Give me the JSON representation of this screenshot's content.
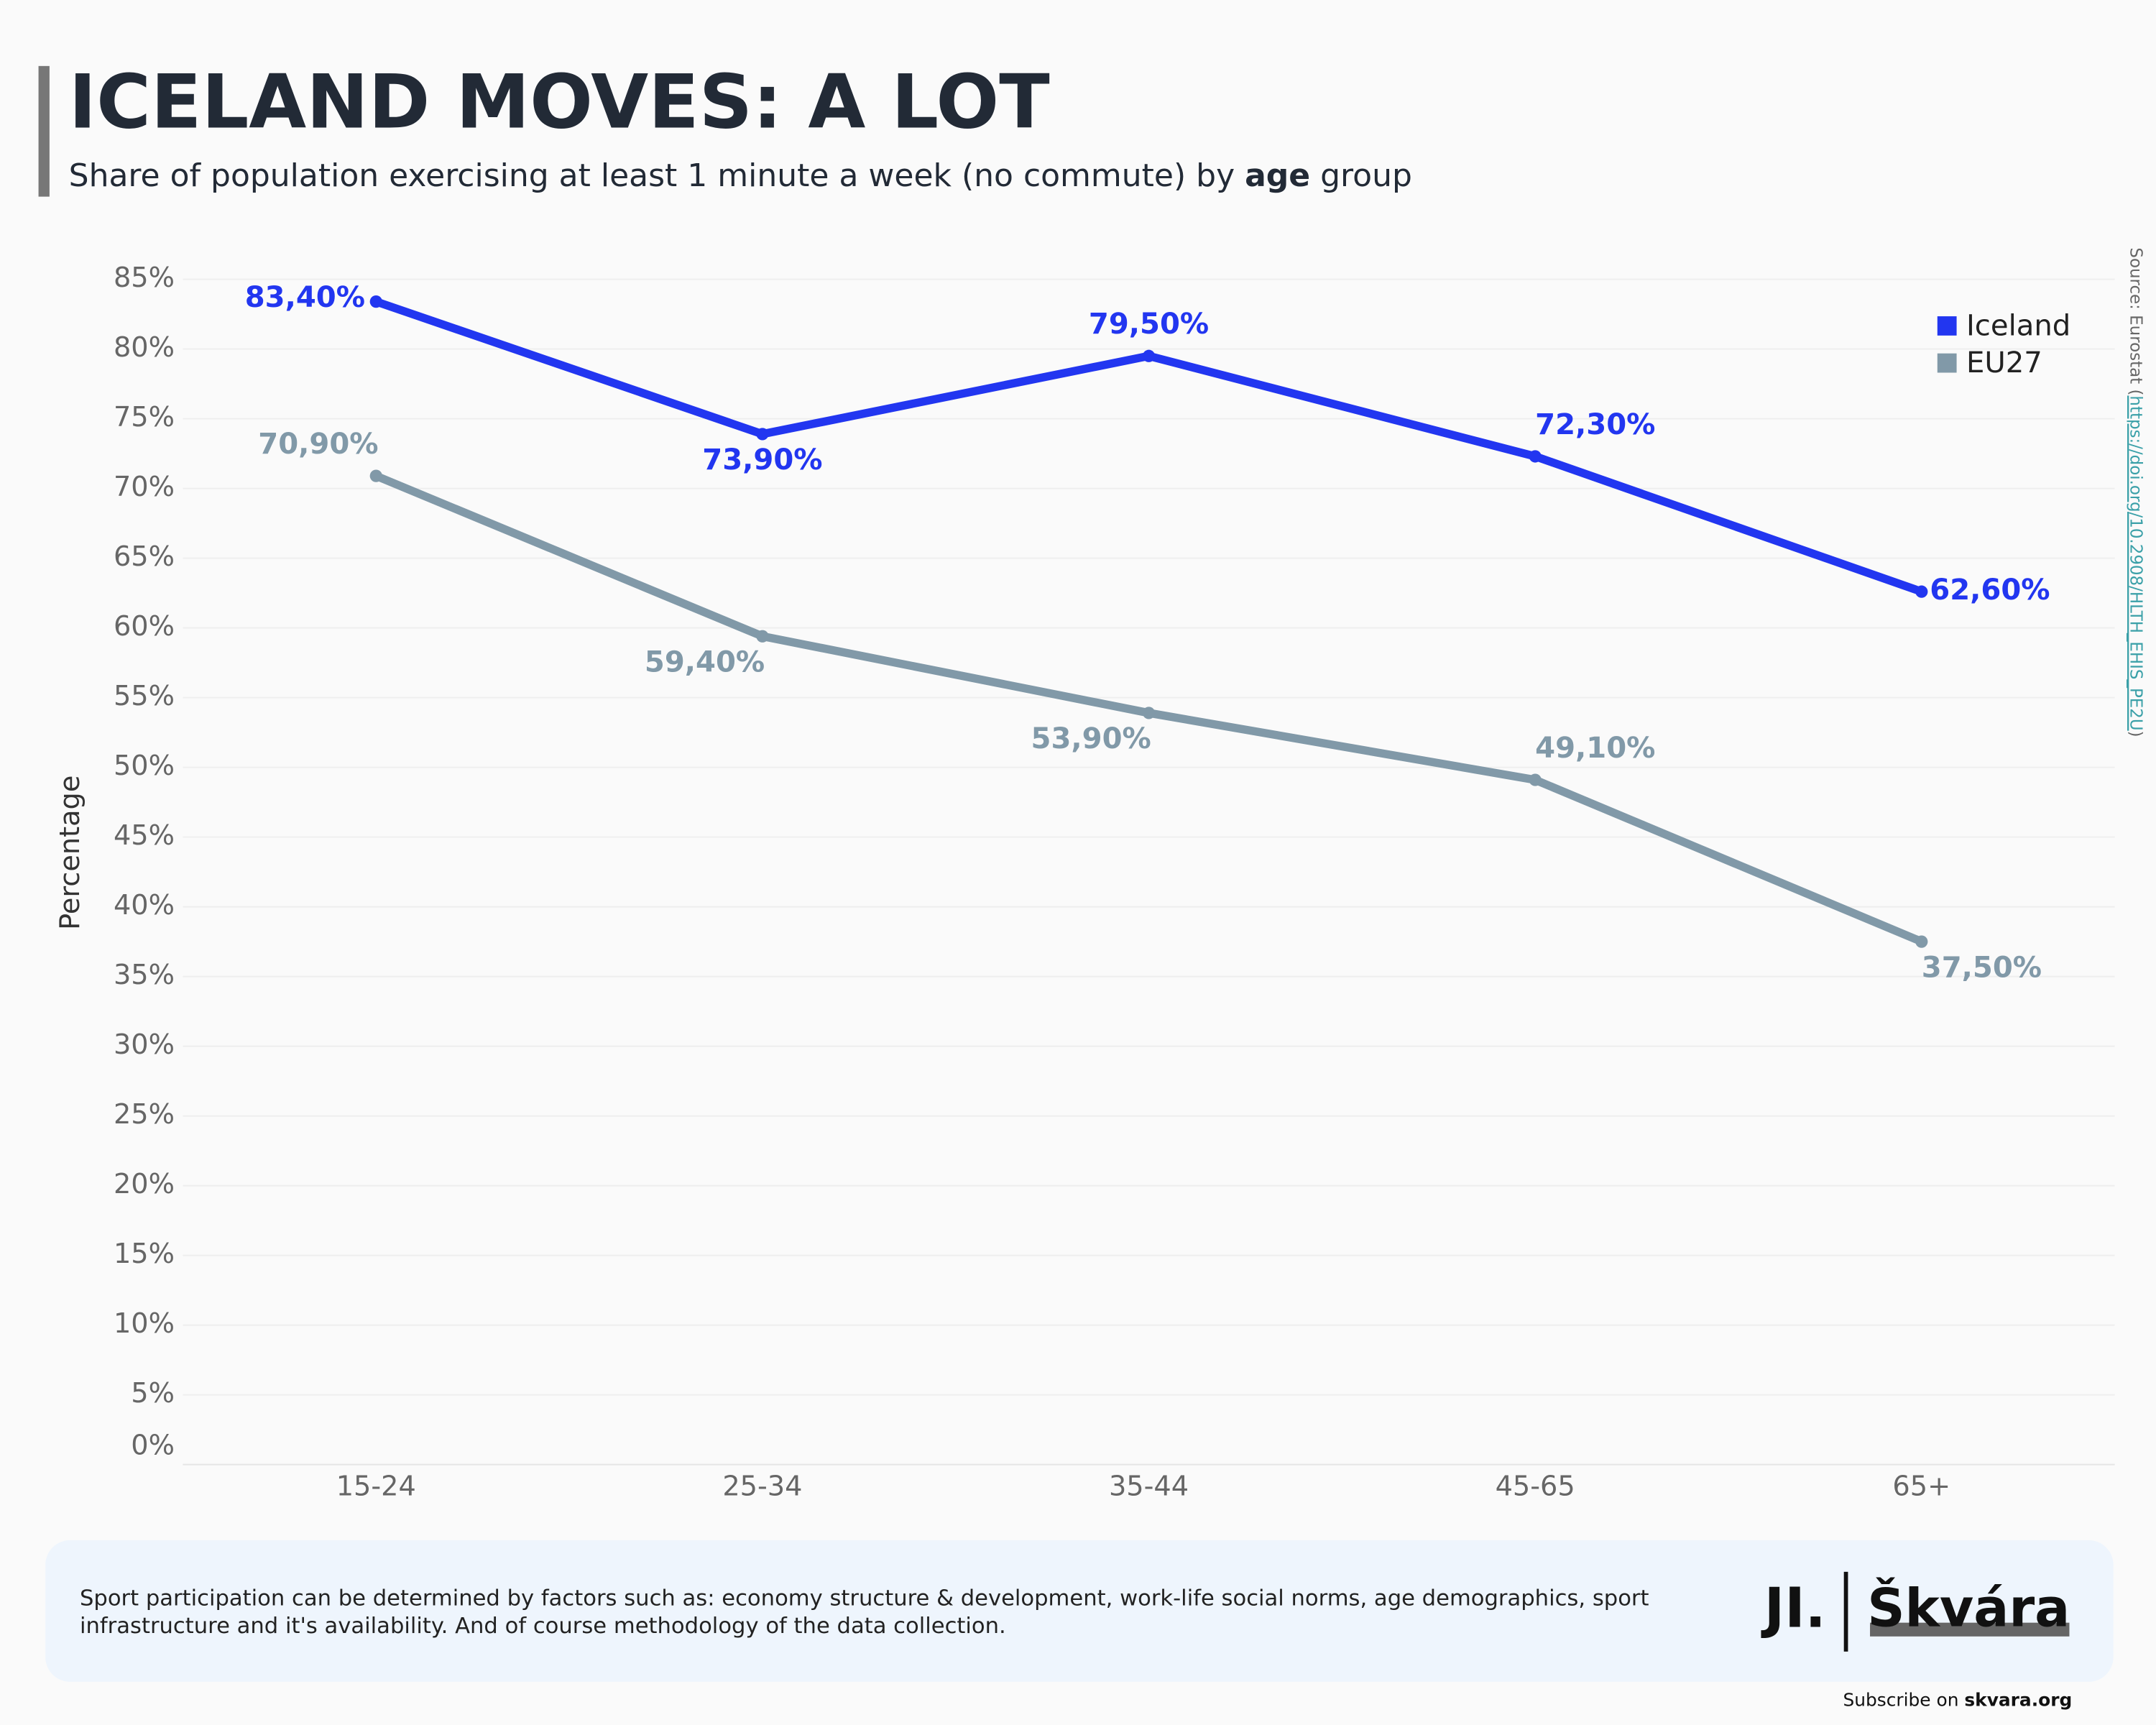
{
  "chart_data": {
    "type": "line",
    "title": "ICELAND MOVES: A LOT",
    "subtitle": [
      "Share of population exercising at least 1 minute a week (no commute) by ",
      "age",
      " group"
    ],
    "y_label": "Percentage",
    "categories": [
      "15-24",
      "25-34",
      "35-44",
      "45-65",
      "65+"
    ],
    "series": [
      {
        "name": "Iceland",
        "color": "#2236f0",
        "values": [
          83.4,
          73.9,
          79.5,
          72.3,
          62.6
        ],
        "value_labels": [
          "83,40%",
          "73,90%",
          "79,50%",
          "72,30%",
          "62,60%"
        ]
      },
      {
        "name": "EU27",
        "color": "#8199a8",
        "values": [
          70.9,
          59.4,
          53.9,
          49.1,
          37.5
        ],
        "value_labels": [
          "70,90%",
          "59,40%",
          "53,90%",
          "49,10%",
          "37,50%"
        ]
      }
    ],
    "ylim": [
      0,
      87
    ],
    "yticks": [
      {
        "value": 0,
        "label": "0%"
      },
      {
        "value": 5,
        "label": "5%"
      },
      {
        "value": 10,
        "label": "10%"
      },
      {
        "value": 15,
        "label": "15%"
      },
      {
        "value": 20,
        "label": "20%"
      },
      {
        "value": 25,
        "label": "25%"
      },
      {
        "value": 30,
        "label": "30%"
      },
      {
        "value": 35,
        "label": "35%"
      },
      {
        "value": 40,
        "label": "40%"
      },
      {
        "value": 45,
        "label": "45%"
      },
      {
        "value": 50,
        "label": "50%"
      },
      {
        "value": 55,
        "label": "55%"
      },
      {
        "value": 60,
        "label": "60%"
      },
      {
        "value": 65,
        "label": "65%"
      },
      {
        "value": 70,
        "label": "70%"
      },
      {
        "value": 75,
        "label": "75%"
      },
      {
        "value": 80,
        "label": "80%"
      },
      {
        "value": 85,
        "label": "85%"
      }
    ],
    "grid": true,
    "legend": "top-right",
    "source_prefix": "Source: Eurostat (",
    "source_link": "https://doi.org/10.2908/HLTH_EHIS_PE2U",
    "source_suffix": ")",
    "note": [
      "Sport participation can be determined by factors such as: economy structure & development, work-life social norms, age demographics, sport",
      "infrastructure and it's availability. And of course methodology of the data collection."
    ],
    "logo": [
      "JI.",
      "Škvára"
    ],
    "subscribe": [
      "Subscribe on ",
      "skvara.org"
    ]
  }
}
